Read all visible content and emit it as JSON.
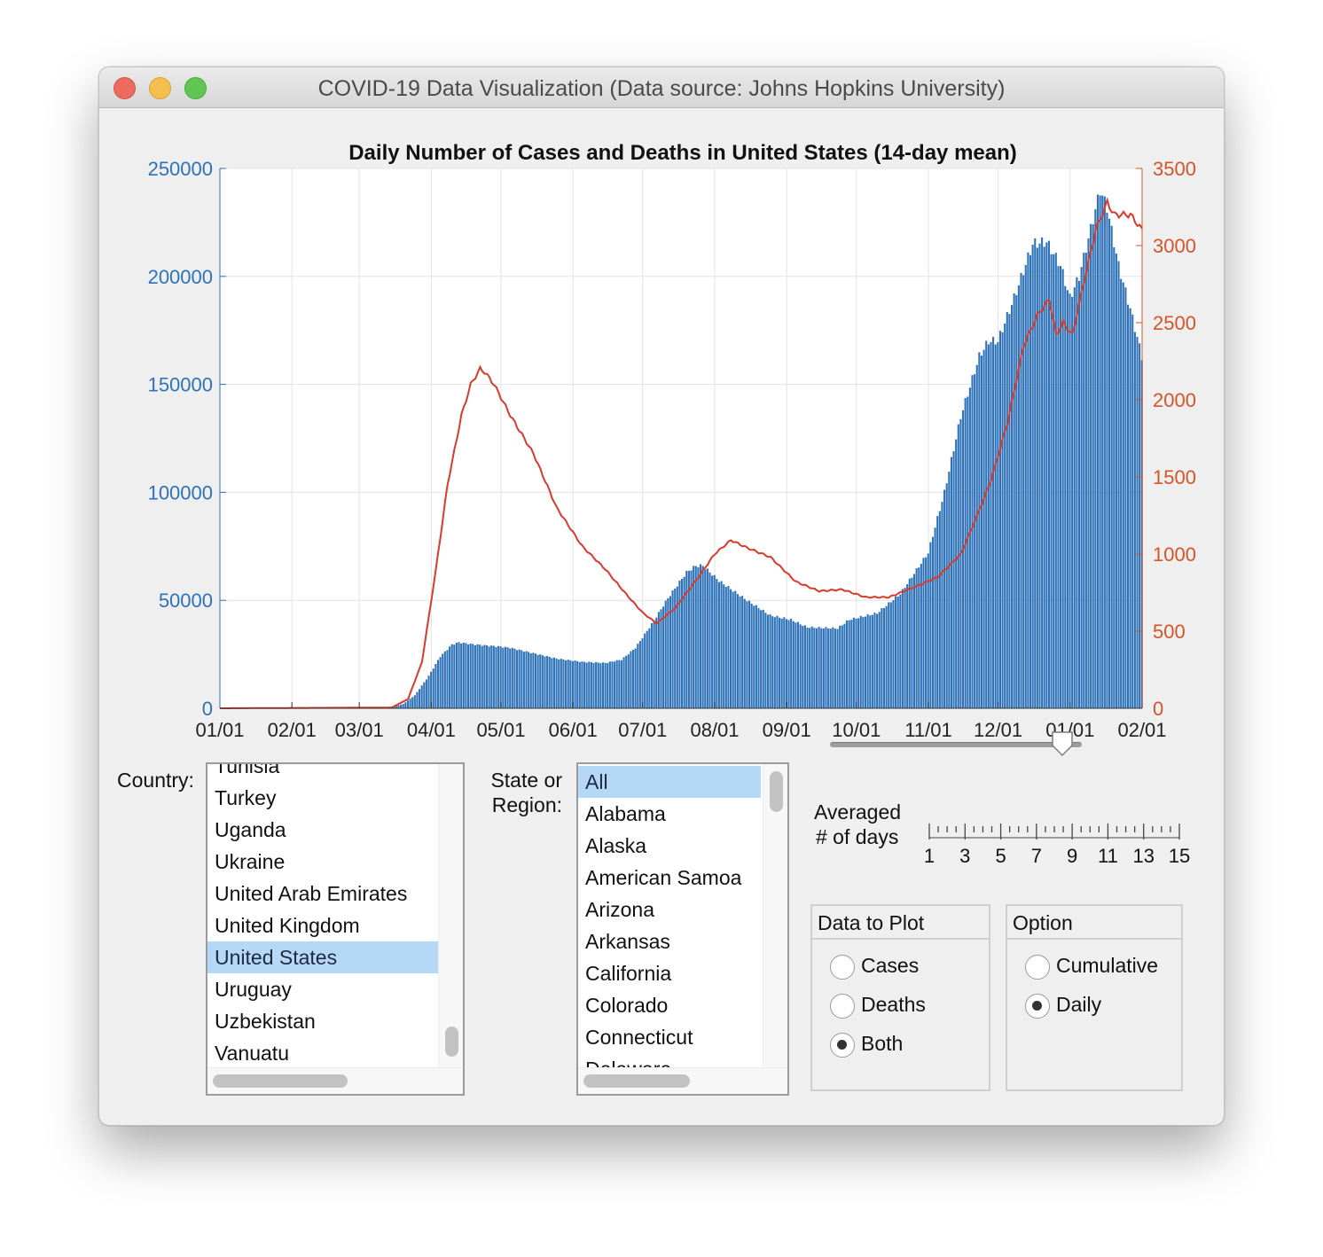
{
  "window": {
    "title": "COVID-19 Data Visualization (Data source: Johns Hopkins University)"
  },
  "chart_data": {
    "type": "bar",
    "title": "Daily Number of Cases and Deaths in United States (14-day mean)",
    "x_start_date": "2020-01-01",
    "x_end_date": "2021-02-01",
    "x_tick_labels": [
      "01/01",
      "02/01",
      "03/01",
      "04/01",
      "05/01",
      "06/01",
      "07/01",
      "08/01",
      "09/01",
      "10/01",
      "11/01",
      "12/01",
      "01/01",
      "02/01"
    ],
    "y_left": {
      "label": "",
      "range": [
        0,
        250000
      ],
      "ticks": [
        "0",
        "50000",
        "100000",
        "150000",
        "200000",
        "250000"
      ],
      "color": "#2e72b8"
    },
    "y_right": {
      "label": "",
      "range": [
        0,
        3500
      ],
      "ticks": [
        "0",
        "500",
        "1000",
        "1500",
        "2000",
        "2500",
        "3000",
        "3500"
      ],
      "color": "#d35529"
    },
    "grid": true,
    "series": [
      {
        "name": "",
        "type": "bar",
        "axis": "left",
        "color": "#2e72b8",
        "points": [
          [
            "2020-01-01",
            0
          ],
          [
            "2020-03-01",
            0
          ],
          [
            "2020-03-15",
            500
          ],
          [
            "2020-03-20",
            2000
          ],
          [
            "2020-03-25",
            6000
          ],
          [
            "2020-03-31",
            15000
          ],
          [
            "2020-04-05",
            24000
          ],
          [
            "2020-04-10",
            29500
          ],
          [
            "2020-04-13",
            30500
          ],
          [
            "2020-04-20",
            29500
          ],
          [
            "2020-05-01",
            28500
          ],
          [
            "2020-05-05",
            28000
          ],
          [
            "2020-05-15",
            25500
          ],
          [
            "2020-05-25",
            23000
          ],
          [
            "2020-06-05",
            21500
          ],
          [
            "2020-06-15",
            21000
          ],
          [
            "2020-06-22",
            22500
          ],
          [
            "2020-06-28",
            28000
          ],
          [
            "2020-07-05",
            39000
          ],
          [
            "2020-07-12",
            51000
          ],
          [
            "2020-07-20",
            63000
          ],
          [
            "2020-07-24",
            66000
          ],
          [
            "2020-07-27",
            66000
          ],
          [
            "2020-08-03",
            59000
          ],
          [
            "2020-08-15",
            50000
          ],
          [
            "2020-08-25",
            43000
          ],
          [
            "2020-09-03",
            41000
          ],
          [
            "2020-09-10",
            37500
          ],
          [
            "2020-09-23",
            37000
          ],
          [
            "2020-09-28",
            41000
          ],
          [
            "2020-10-10",
            44000
          ],
          [
            "2020-10-20",
            53000
          ],
          [
            "2020-11-01",
            72000
          ],
          [
            "2020-11-08",
            100000
          ],
          [
            "2020-11-15",
            135000
          ],
          [
            "2020-11-23",
            163000
          ],
          [
            "2020-11-27",
            170000
          ],
          [
            "2020-12-01",
            170000
          ],
          [
            "2020-12-08",
            190000
          ],
          [
            "2020-12-16",
            215000
          ],
          [
            "2020-12-22",
            216000
          ],
          [
            "2020-12-28",
            205000
          ],
          [
            "2021-01-01",
            190000
          ],
          [
            "2021-01-05",
            200000
          ],
          [
            "2021-01-10",
            222000
          ],
          [
            "2021-01-14",
            240000
          ],
          [
            "2021-01-17",
            232000
          ],
          [
            "2021-01-22",
            205000
          ],
          [
            "2021-01-27",
            185000
          ],
          [
            "2021-02-01",
            163000
          ]
        ]
      },
      {
        "name": "",
        "type": "line",
        "axis": "right",
        "color": "#d93a2b",
        "points": [
          [
            "2020-01-01",
            0
          ],
          [
            "2020-03-15",
            5
          ],
          [
            "2020-03-22",
            60
          ],
          [
            "2020-03-28",
            300
          ],
          [
            "2020-04-03",
            900
          ],
          [
            "2020-04-08",
            1450
          ],
          [
            "2020-04-14",
            1900
          ],
          [
            "2020-04-18",
            2100
          ],
          [
            "2020-04-22",
            2200
          ],
          [
            "2020-04-24",
            2180
          ],
          [
            "2020-04-28",
            2100
          ],
          [
            "2020-05-05",
            1900
          ],
          [
            "2020-05-15",
            1650
          ],
          [
            "2020-05-25",
            1300
          ],
          [
            "2020-06-05",
            1050
          ],
          [
            "2020-06-15",
            900
          ],
          [
            "2020-06-25",
            720
          ],
          [
            "2020-07-01",
            620
          ],
          [
            "2020-07-07",
            550
          ],
          [
            "2020-07-15",
            650
          ],
          [
            "2020-07-25",
            850
          ],
          [
            "2020-08-01",
            1000
          ],
          [
            "2020-08-08",
            1090
          ],
          [
            "2020-08-15",
            1040
          ],
          [
            "2020-08-25",
            980
          ],
          [
            "2020-09-05",
            820
          ],
          [
            "2020-09-15",
            760
          ],
          [
            "2020-09-25",
            770
          ],
          [
            "2020-10-05",
            720
          ],
          [
            "2020-10-15",
            720
          ],
          [
            "2020-10-25",
            780
          ],
          [
            "2020-11-05",
            850
          ],
          [
            "2020-11-15",
            1000
          ],
          [
            "2020-11-22",
            1250
          ],
          [
            "2020-11-28",
            1480
          ],
          [
            "2020-12-05",
            1850
          ],
          [
            "2020-12-12",
            2350
          ],
          [
            "2020-12-18",
            2550
          ],
          [
            "2020-12-23",
            2650
          ],
          [
            "2020-12-26",
            2420
          ],
          [
            "2020-12-29",
            2500
          ],
          [
            "2021-01-02",
            2420
          ],
          [
            "2021-01-06",
            2700
          ],
          [
            "2021-01-12",
            3100
          ],
          [
            "2021-01-17",
            3280
          ],
          [
            "2021-01-20",
            3200
          ],
          [
            "2021-01-27",
            3200
          ],
          [
            "2021-02-01",
            3100
          ]
        ]
      }
    ]
  },
  "controls": {
    "country_label": "Country:",
    "country_items": [
      "Tunisia",
      "Turkey",
      "Uganda",
      "Ukraine",
      "United Arab Emirates",
      "United Kingdom",
      "United States",
      "Uruguay",
      "Uzbekistan",
      "Vanuatu"
    ],
    "country_selected": "United States",
    "state_label_1": "State or",
    "state_label_2": "Region:",
    "state_items": [
      "All",
      "Alabama",
      "Alaska",
      "American Samoa",
      "Arizona",
      "Arkansas",
      "California",
      "Colorado",
      "Connecticut",
      "Delaware"
    ],
    "state_selected": "All",
    "slider_label_1": "Averaged",
    "slider_label_2": "# of days",
    "slider_value": 14,
    "slider_min": 1,
    "slider_max": 15,
    "slider_tick_labels": [
      "1",
      "3",
      "5",
      "7",
      "9",
      "11",
      "13",
      "15"
    ],
    "data_group_title": "Data to Plot",
    "data_options": [
      "Cases",
      "Deaths",
      "Both"
    ],
    "data_selected": "Both",
    "option_group_title": "Option",
    "option_options": [
      "Cumulative",
      "Daily"
    ],
    "option_selected": "Daily"
  }
}
